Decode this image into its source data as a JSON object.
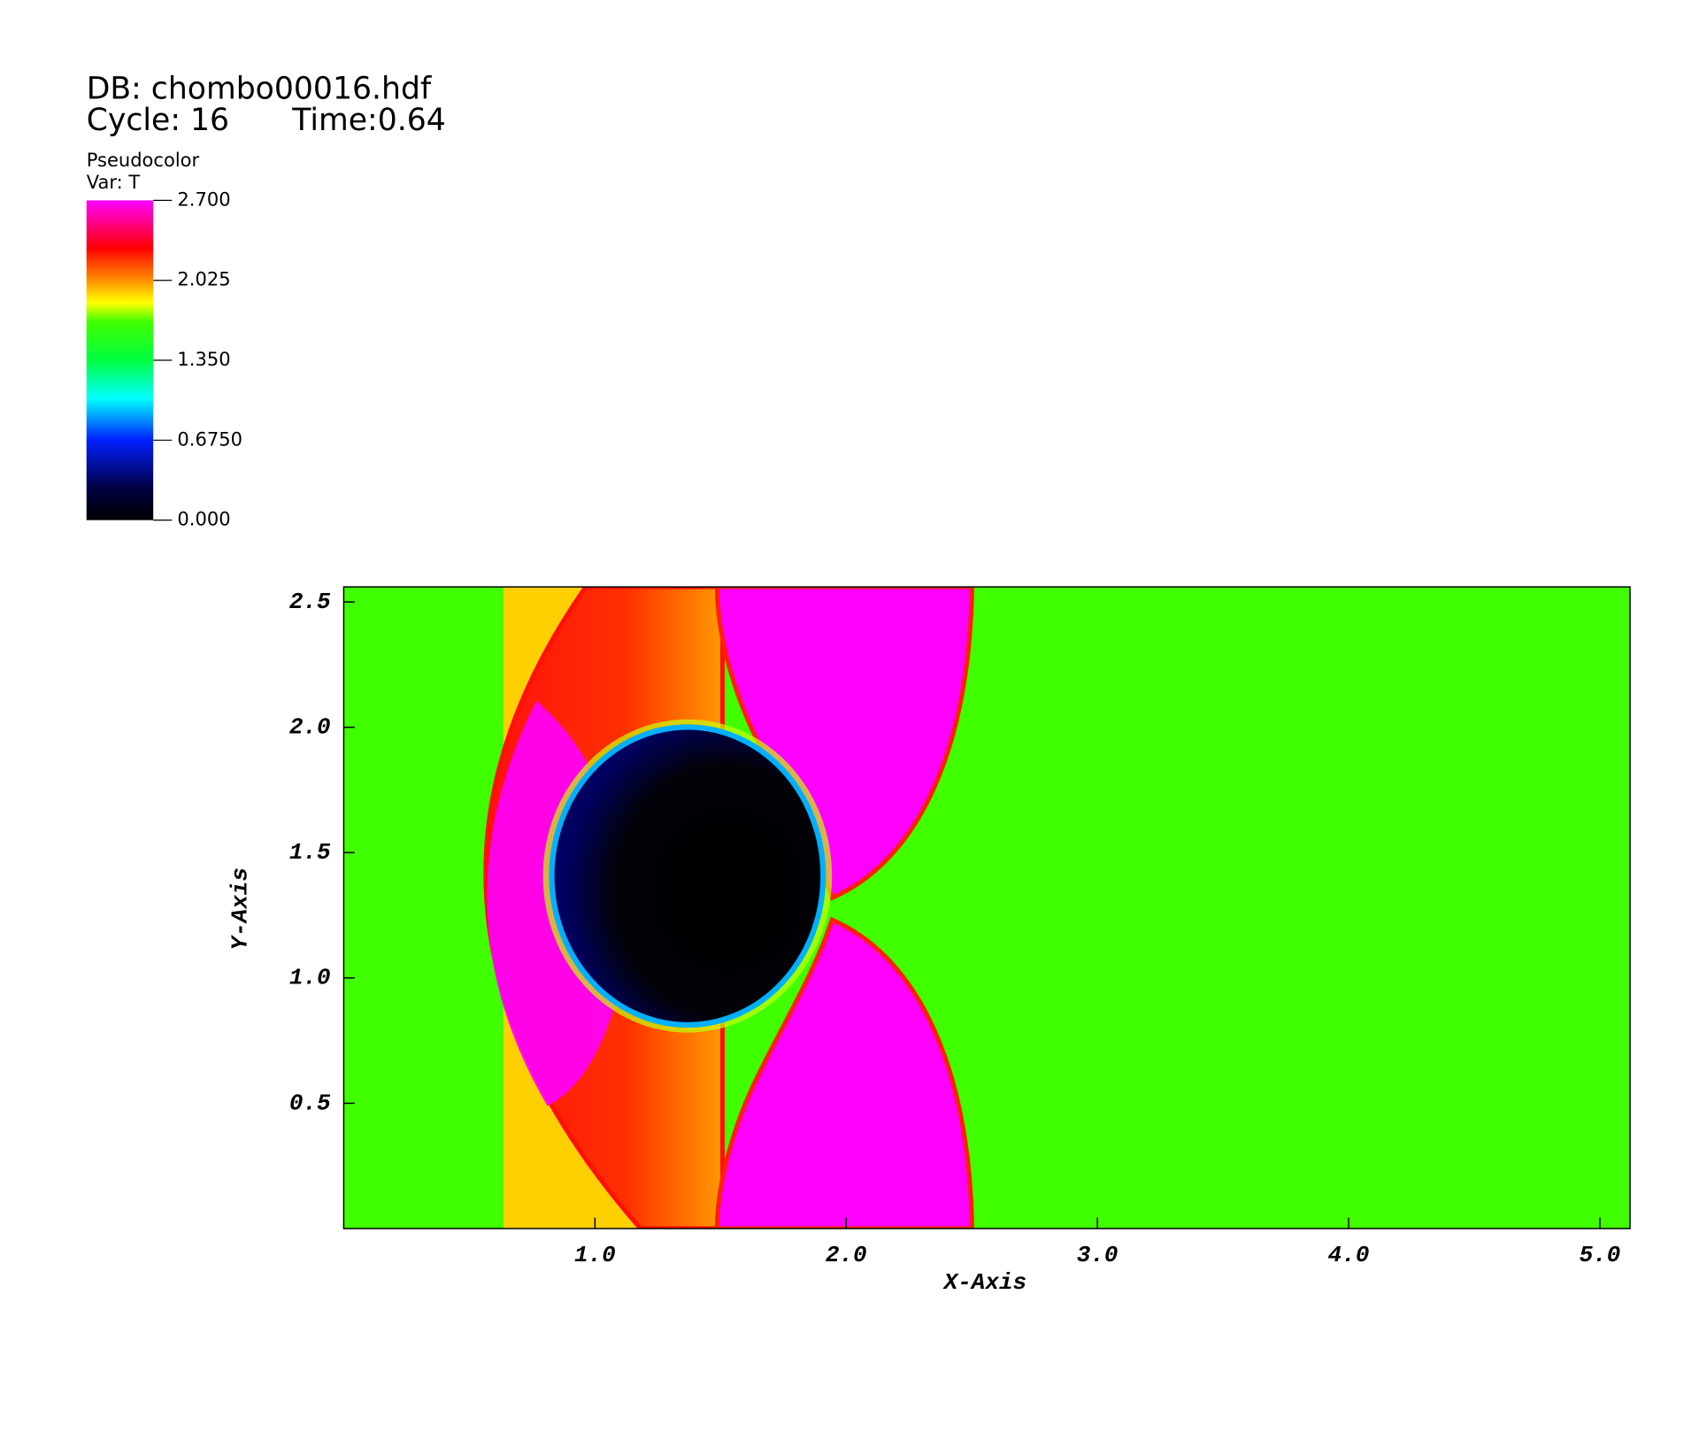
{
  "header": {
    "db": "DB: chombo00016.hdf",
    "cycle": "Cycle: 16",
    "time": "Time:0.64"
  },
  "legend": {
    "title": "Pseudocolor",
    "var": "Var: T",
    "range": [
      0,
      2.7
    ],
    "ticks": [
      {
        "value": 2.7,
        "label": "2.700"
      },
      {
        "value": 2.025,
        "label": "2.025"
      },
      {
        "value": 1.35,
        "label": "1.350"
      },
      {
        "value": 0.675,
        "label": "0.6750"
      },
      {
        "value": 0,
        "label": "0.000"
      }
    ]
  },
  "chart_data": {
    "type": "pseudocolor",
    "xlabel": "X-Axis",
    "ylabel": "Y-Axis",
    "xlim": [
      0,
      5.12
    ],
    "ylim": [
      0,
      2.56
    ],
    "xticks": [
      {
        "value": 1,
        "label": "1.0"
      },
      {
        "value": 2,
        "label": "2.0"
      },
      {
        "value": 3,
        "label": "3.0"
      },
      {
        "value": 4,
        "label": "4.0"
      },
      {
        "value": 5,
        "label": "5.0"
      }
    ],
    "yticks": [
      {
        "value": 0.5,
        "label": "0.5"
      },
      {
        "value": 1,
        "label": "1.0"
      },
      {
        "value": 1.5,
        "label": "1.5"
      },
      {
        "value": 2,
        "label": "2.0"
      },
      {
        "value": 2.5,
        "label": "2.5"
      }
    ]
  }
}
